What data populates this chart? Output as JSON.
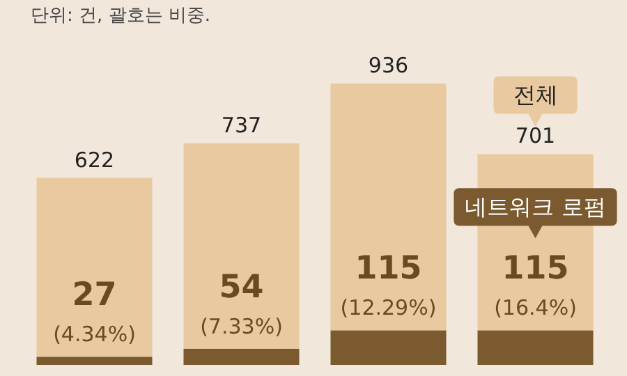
{
  "chart_data": {
    "type": "bar",
    "subtitle": "단위: 건, 괄호는 비중.",
    "stacked": true,
    "categories": [
      null,
      null,
      null,
      null
    ],
    "series": [
      {
        "name": "네트워크 로펌",
        "color": "#7a5a2e",
        "values": [
          27,
          54,
          115,
          115
        ],
        "value_labels": [
          "27 (4.34%)",
          "54 (7.33%)",
          "115 (12.29%)",
          "115 (16.4%)"
        ]
      },
      {
        "color": "#e8c9a0",
        "values": [
          595,
          683,
          821,
          586
        ]
      }
    ],
    "totals": [
      "622",
      "737",
      "936",
      "701"
    ],
    "annotations": [
      "전체"
    ]
  }
}
